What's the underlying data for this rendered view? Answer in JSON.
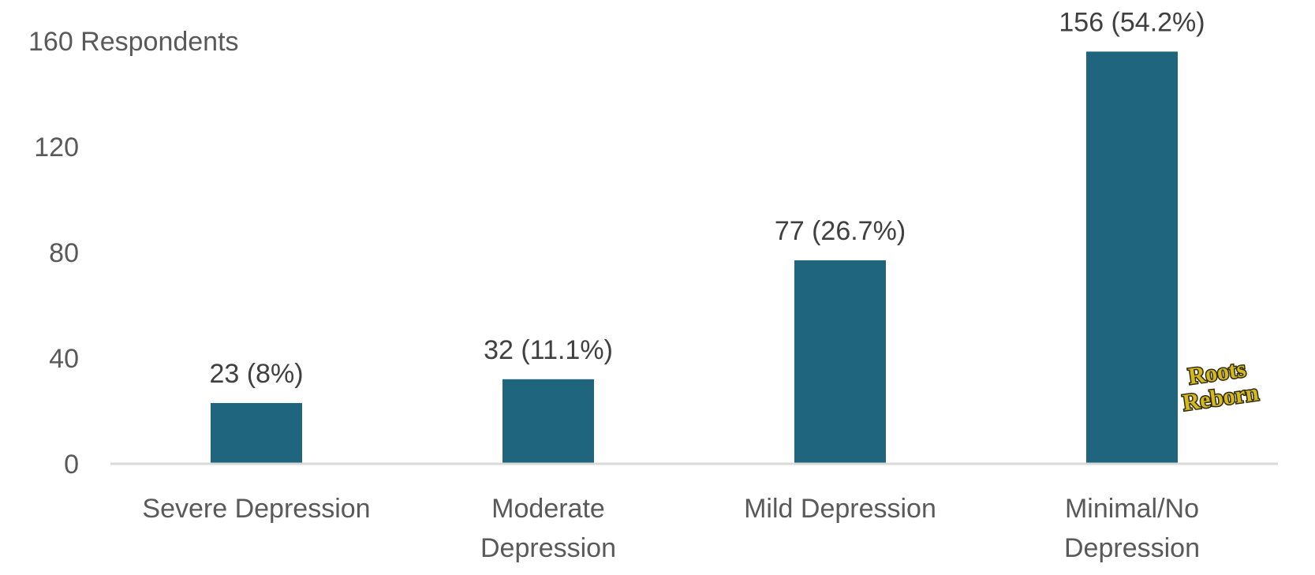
{
  "chart_data": {
    "type": "bar",
    "categories": [
      "Severe Depression",
      "Moderate Depression",
      "Mild Depression",
      "Minimal/No Depression"
    ],
    "category_lines": [
      [
        "Severe Depression"
      ],
      [
        "Moderate",
        "Depression"
      ],
      [
        "Mild Depression"
      ],
      [
        "Minimal/No",
        "Depression"
      ]
    ],
    "values": [
      23,
      32,
      77,
      156
    ],
    "data_labels": [
      "23 (8%)",
      "32 (11.1%)",
      "77 (26.7%)",
      "156 (54.2%)"
    ],
    "y_ticks": [
      0,
      40,
      80,
      120,
      160
    ],
    "y_tick_labels": [
      "0",
      "40",
      "80",
      "120",
      "160 Respondents"
    ],
    "ylim": [
      0,
      160
    ],
    "grid": false,
    "legend": "none",
    "bar_color": "#1f657e",
    "axis_color": "#d9d9d9"
  },
  "logo": {
    "text_line1": "Roots",
    "text_line2": "Reborn"
  }
}
